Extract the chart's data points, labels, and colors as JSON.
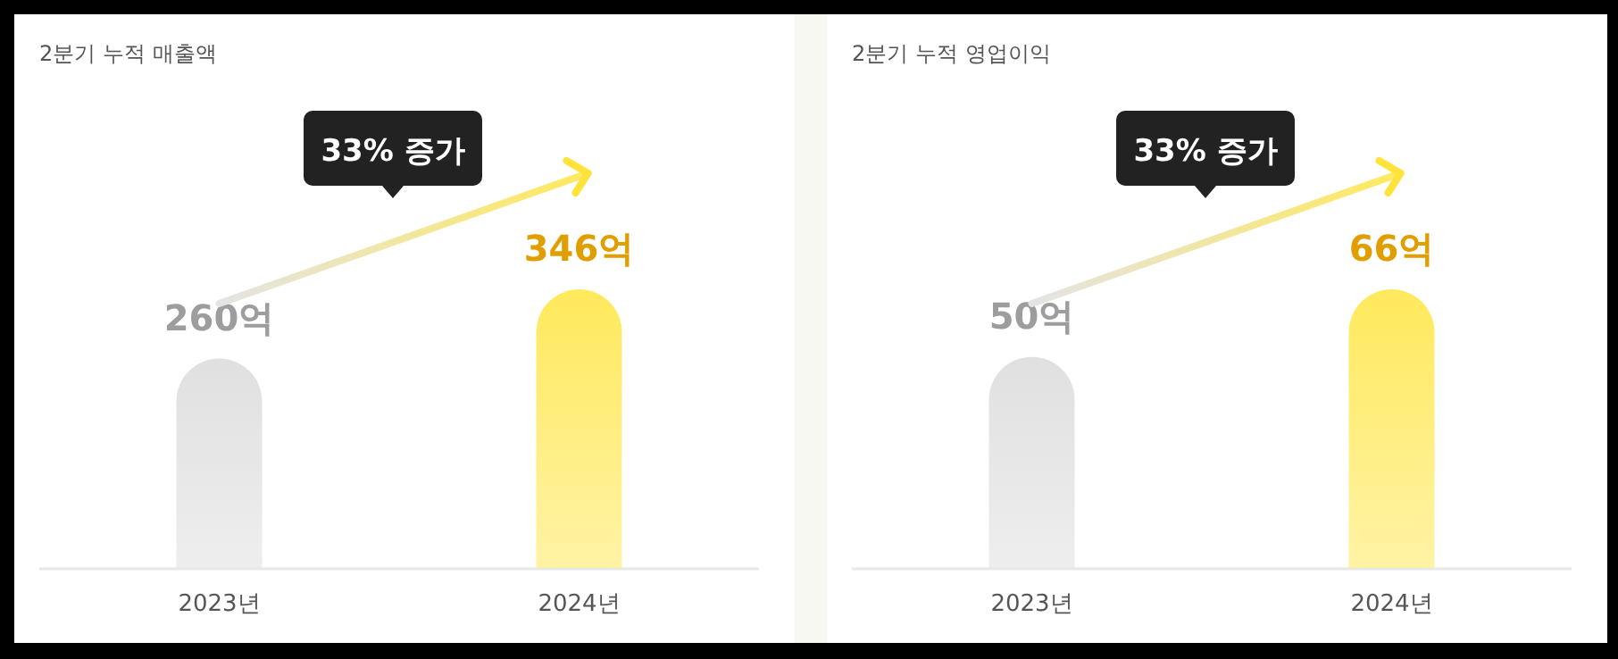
{
  "chart_data": [
    {
      "type": "bar",
      "title": "2분기 누적 매출액",
      "categories": [
        "2023년",
        "2024년"
      ],
      "values": [
        260,
        346
      ],
      "value_labels": [
        "260억",
        "346억"
      ],
      "colors": [
        "#e0e0e0",
        "#ffe95c"
      ],
      "annotations": [
        "33% 증가"
      ]
    },
    {
      "type": "bar",
      "title": "2분기 누적 영업이익",
      "categories": [
        "2023년",
        "2024년"
      ],
      "values": [
        50,
        66
      ],
      "value_labels": [
        "50억",
        "66억"
      ],
      "colors": [
        "#e0e0e0",
        "#ffe95c"
      ],
      "annotations": [
        "33% 증가"
      ]
    }
  ]
}
